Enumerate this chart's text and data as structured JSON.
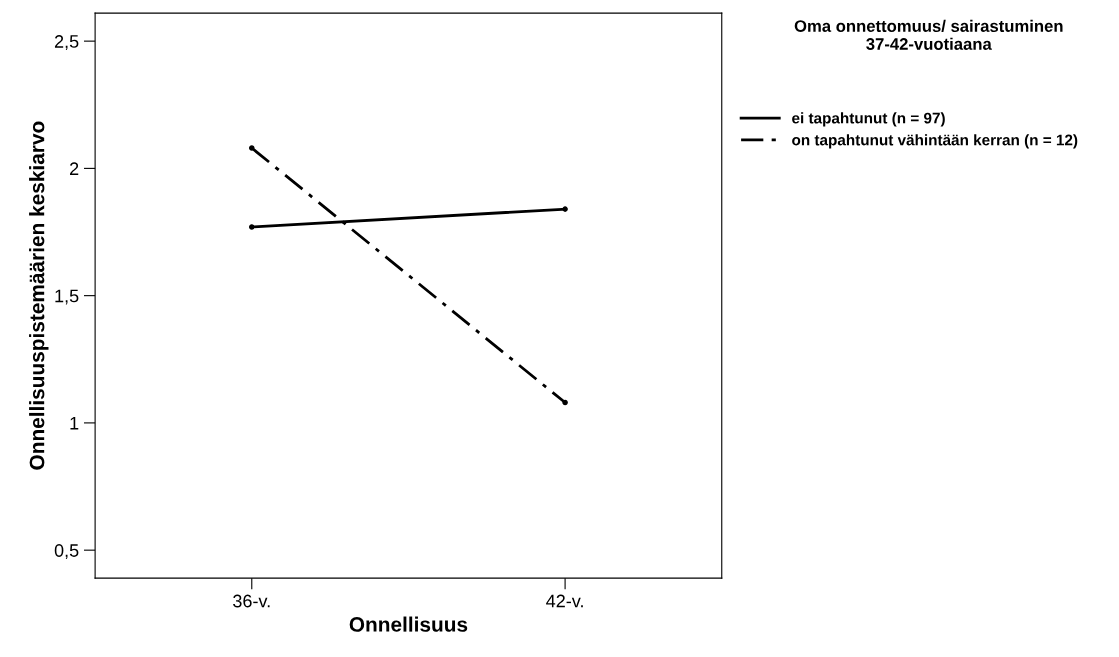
{
  "chart_data": {
    "type": "line",
    "xlabel": "Onnellisuus",
    "ylabel": "Onnellisuuspistemäärien keskiarvo",
    "legend_title": "Oma onnettomuus/ sairastuminen 37-42-vuotiaana",
    "categories": [
      "36-v.",
      "42-v."
    ],
    "series": [
      {
        "name": "ei tapahtunut (n = 97)",
        "color": "#000000",
        "values": [
          1.77,
          1.84
        ],
        "line_style": "solid"
      },
      {
        "name": "on tapahtunut vähintään kerran (n = 12)",
        "color": "#000000",
        "values": [
          2.08,
          1.08
        ],
        "line_style": "dashdot"
      }
    ],
    "ylim": [
      0.39,
      2.61
    ],
    "yticks": [
      {
        "value": 0.5,
        "label": "0,5"
      },
      {
        "value": 1,
        "label": "1"
      },
      {
        "value": 1.5,
        "label": "1,5"
      },
      {
        "value": 2,
        "label": "2"
      },
      {
        "value": 2.5,
        "label": "2,5"
      }
    ],
    "marker": "circle",
    "grid": false,
    "legend": "right"
  }
}
